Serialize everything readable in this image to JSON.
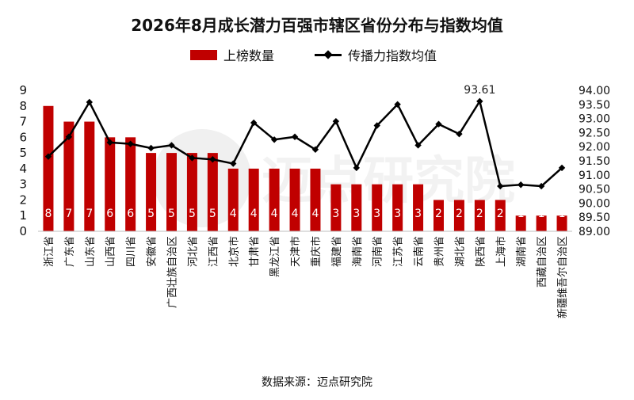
{
  "title": "2026年8月成长潜力百强市辖区省份分布与指数均值",
  "source": "数据来源：迈点研究院",
  "watermark": "迈点研究院",
  "legend": {
    "bar": "上榜数量",
    "line": "传播力指数均值"
  },
  "colors": {
    "bar": "#c00000",
    "line": "#000000",
    "bar_label": "#ffffff"
  },
  "chart_data": {
    "type": "bar+line",
    "categories": [
      "浙江省",
      "广东省",
      "山东省",
      "山西省",
      "四川省",
      "安徽省",
      "广西壮族自治区",
      "河北省",
      "江西省",
      "北京市",
      "甘肃省",
      "黑龙江省",
      "天津市",
      "重庆市",
      "福建省",
      "海南省",
      "河南省",
      "江苏省",
      "云南省",
      "贵州省",
      "湖北省",
      "陕西省",
      "上海市",
      "湖南省",
      "西藏自治区",
      "新疆维吾尔自治区"
    ],
    "series": [
      {
        "name": "上榜数量",
        "type": "bar",
        "axis": "left",
        "values": [
          8,
          7,
          7,
          6,
          6,
          5,
          5,
          5,
          5,
          4,
          4,
          4,
          4,
          4,
          3,
          3,
          3,
          3,
          3,
          2,
          2,
          2,
          2,
          1,
          1,
          1
        ]
      },
      {
        "name": "传播力指数均值",
        "type": "line",
        "axis": "right",
        "values": [
          91.65,
          92.35,
          93.58,
          92.15,
          92.1,
          91.95,
          92.05,
          91.6,
          91.55,
          91.4,
          92.85,
          92.25,
          92.35,
          91.9,
          92.9,
          91.25,
          92.75,
          93.5,
          92.05,
          92.8,
          92.45,
          93.61,
          90.6,
          90.65,
          90.6,
          91.25
        ]
      }
    ],
    "annotations": [
      {
        "category": "陕西省",
        "text": "93.61"
      }
    ],
    "left_axis": {
      "min": 0,
      "max": 9,
      "ticks": [
        "0",
        "1",
        "2",
        "3",
        "4",
        "5",
        "6",
        "7",
        "8",
        "9"
      ]
    },
    "right_axis": {
      "min": 89,
      "max": 94,
      "ticks": [
        "89.00",
        "89.50",
        "90.00",
        "90.50",
        "91.00",
        "91.50",
        "92.00",
        "92.50",
        "93.00",
        "93.50",
        "94.00"
      ]
    },
    "grid": false,
    "legend_position": "top"
  }
}
